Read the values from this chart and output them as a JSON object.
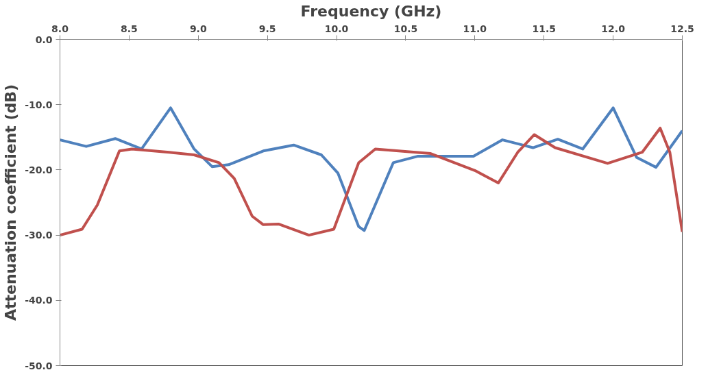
{
  "chart_data": {
    "type": "line",
    "xlabel": "Frequency (GHz)",
    "ylabel": "Attenuation coefficient (dB)",
    "xlim": [
      8.0,
      12.5
    ],
    "ylim": [
      -50,
      0
    ],
    "xticks": [
      {
        "value": 8.0,
        "label": "8.0"
      },
      {
        "value": 8.5,
        "label": "8.5"
      },
      {
        "value": 9.0,
        "label": "9.0"
      },
      {
        "value": 9.5,
        "label": "9.5"
      },
      {
        "value": 10.0,
        "label": "10.0"
      },
      {
        "value": 10.5,
        "label": "10.5"
      },
      {
        "value": 11.0,
        "label": "11.0"
      },
      {
        "value": 11.5,
        "label": "11.5"
      },
      {
        "value": 12.0,
        "label": "12.0"
      },
      {
        "value": 12.5,
        "label": "12.5"
      }
    ],
    "yticks": [
      {
        "value": 0,
        "label": "0.0"
      },
      {
        "value": -10,
        "label": "-10.0"
      },
      {
        "value": -20,
        "label": "-20.0"
      },
      {
        "value": -30,
        "label": "-30.0"
      },
      {
        "value": -40,
        "label": "-40.0"
      },
      {
        "value": -50,
        "label": "-50.0"
      }
    ],
    "grid": false,
    "line_style": "solid",
    "series": [
      {
        "color": "#4f81bd",
        "x": [
          8.0,
          8.19,
          8.4,
          8.59,
          8.8,
          8.97,
          9.1,
          9.22,
          9.47,
          9.69,
          9.89,
          10.01,
          10.16,
          10.2,
          10.41,
          10.59,
          10.99,
          11.2,
          11.42,
          11.6,
          11.78,
          12.0,
          12.17,
          12.31,
          12.5
        ],
        "values": [
          -15.4,
          -16.4,
          -15.2,
          -16.8,
          -10.5,
          -16.8,
          -19.5,
          -19.2,
          -17.1,
          -16.2,
          -17.7,
          -20.5,
          -28.7,
          -29.3,
          -18.9,
          -17.9,
          -17.9,
          -15.4,
          -16.6,
          -15.3,
          -16.8,
          -10.5,
          -18.1,
          -19.6,
          -14.0
        ]
      },
      {
        "color": "#c0504d",
        "x": [
          8.0,
          8.16,
          8.27,
          8.43,
          8.52,
          8.79,
          8.97,
          9.15,
          9.26,
          9.39,
          9.47,
          9.58,
          9.8,
          9.98,
          10.16,
          10.28,
          10.68,
          11.0,
          11.17,
          11.31,
          11.43,
          11.58,
          11.96,
          12.21,
          12.34,
          12.41,
          12.5
        ],
        "values": [
          -30.0,
          -29.1,
          -25.4,
          -17.1,
          -16.8,
          -17.3,
          -17.7,
          -18.9,
          -21.3,
          -27.1,
          -28.4,
          -28.3,
          -30.0,
          -29.1,
          -18.9,
          -16.8,
          -17.5,
          -20.1,
          -22.0,
          -17.3,
          -14.6,
          -16.6,
          -19.0,
          -17.3,
          -13.6,
          -17.3,
          -29.5
        ]
      }
    ]
  }
}
